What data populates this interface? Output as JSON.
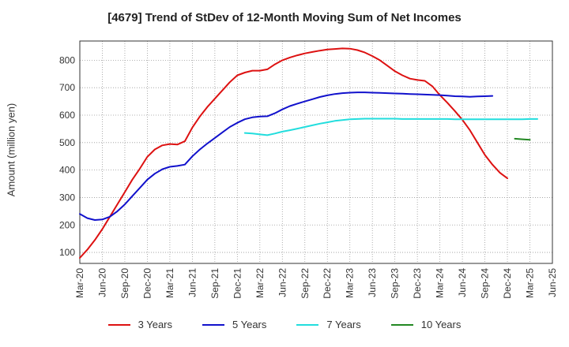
{
  "title": "[4679]  Trend of StDev of 12-Month Moving Sum of Net Incomes",
  "chart_data": {
    "type": "line",
    "title": "[4679]  Trend of StDev of 12-Month Moving Sum of Net Incomes",
    "ylabel": "Amount (million yen)",
    "xlabel": "",
    "ylim": [
      60,
      870
    ],
    "yticks": [
      100,
      200,
      300,
      400,
      500,
      600,
      700,
      800
    ],
    "x_tick_labels": [
      "Mar-20",
      "Jun-20",
      "Sep-20",
      "Dec-20",
      "Mar-21",
      "Jun-21",
      "Sep-21",
      "Dec-21",
      "Mar-22",
      "Jun-22",
      "Sep-22",
      "Dec-22",
      "Mar-23",
      "Jun-23",
      "Sep-23",
      "Dec-23",
      "Mar-24",
      "Jun-24",
      "Sep-24",
      "Dec-24",
      "Mar-25",
      "Jun-25"
    ],
    "grid": true,
    "legend_position": "bottom",
    "series": [
      {
        "name": "3 Years",
        "color": "#dd1111",
        "start": "2020-03",
        "values": [
          80,
          110,
          145,
          185,
          230,
          275,
          320,
          365,
          405,
          448,
          475,
          490,
          495,
          493,
          505,
          555,
          595,
          630,
          660,
          690,
          720,
          745,
          755,
          762,
          762,
          767,
          785,
          800,
          810,
          818,
          825,
          830,
          835,
          839,
          841,
          843,
          842,
          837,
          828,
          815,
          800,
          780,
          760,
          745,
          733,
          728,
          725,
          705,
          673,
          645,
          615,
          583,
          545,
          500,
          455,
          420,
          390,
          370
        ]
      },
      {
        "name": "5 Years",
        "color": "#1111cc",
        "start": "2020-03",
        "values": [
          240,
          225,
          218,
          220,
          230,
          250,
          275,
          305,
          335,
          365,
          387,
          403,
          412,
          415,
          420,
          450,
          475,
          497,
          517,
          537,
          557,
          572,
          585,
          592,
          595,
          596,
          607,
          621,
          633,
          642,
          650,
          658,
          666,
          672,
          677,
          680,
          682,
          683,
          683,
          682,
          681,
          680,
          679,
          678,
          677,
          676,
          675,
          674,
          673,
          671,
          669,
          668,
          667,
          668,
          669,
          670
        ]
      },
      {
        "name": "7 Years",
        "color": "#22dddd",
        "start": "2022-01",
        "values": [
          535,
          533,
          530,
          527,
          533,
          540,
          545,
          551,
          557,
          563,
          569,
          574,
          579,
          582,
          585,
          586,
          587,
          587,
          587,
          587,
          587,
          586,
          586,
          586,
          586,
          586,
          586,
          586,
          585,
          585,
          585,
          585,
          585,
          585,
          585,
          585,
          585,
          585,
          586,
          586
        ]
      },
      {
        "name": "10 Years",
        "color": "#228822",
        "start": "2025-01",
        "values": [
          514,
          512,
          510
        ]
      }
    ]
  }
}
